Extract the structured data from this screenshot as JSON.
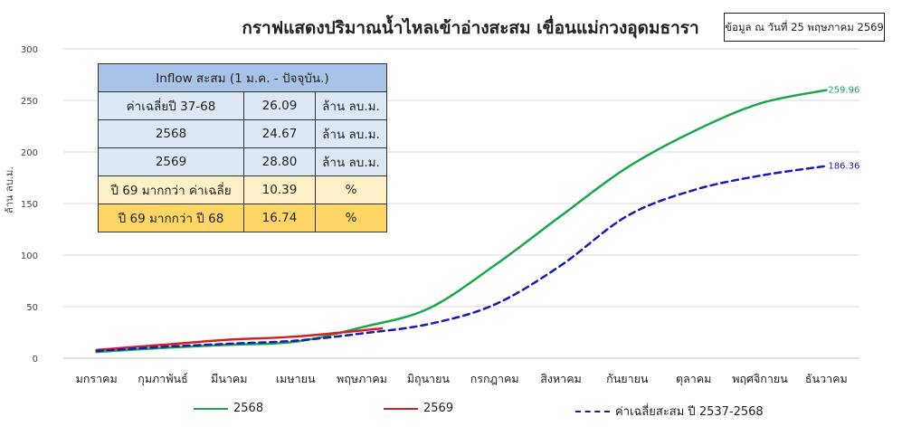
{
  "colors": {
    "s2568": "#1aa64a",
    "s2569": "#d62020",
    "avg": "#1a1ab8",
    "grid": "#d9d9d9"
  },
  "title": "กราฟแสดงปริมาณน้ำไหลเข้าอ่างสะสม เขื่อนแม่กวงอุดมธารา",
  "note": "ข้อมูล ณ วันที่ 25 พฤษภาคม 2569",
  "table": {
    "header": "Inflow สะสม (1 ม.ค. - ปัจจุบัน.)",
    "rows": [
      {
        "label": "ค่าเฉลี่ยปี 37-68",
        "value": "26.09",
        "unit": "ล้าน ลบ.ม."
      },
      {
        "label": "2568",
        "value": "24.67",
        "unit": "ล้าน ลบ.ม."
      },
      {
        "label": "2569",
        "value": "28.80",
        "unit": "ล้าน ลบ.ม."
      },
      {
        "label": "ปี 69 มากกว่า ค่าเฉลี่ย",
        "value": "10.39",
        "unit": "%"
      },
      {
        "label": "ปี 69 มากกว่า ปี 68",
        "value": "16.74",
        "unit": "%"
      }
    ]
  },
  "chart_data": {
    "type": "line",
    "title": "กราฟแสดงปริมาณน้ำไหลเข้าอ่างสะสม เขื่อนแม่กวงอุดมธารา",
    "ylabel": "ล้าน ลบ.ม.",
    "xlabel": "",
    "ylim": [
      0,
      300
    ],
    "yticks": [
      0,
      50,
      100,
      150,
      200,
      250,
      300
    ],
    "grid": true,
    "legend_position": "bottom",
    "categories": [
      "มกราคม",
      "กุมภาพันธ์",
      "มีนาคม",
      "เมษายน",
      "พฤษภาคม",
      "มิถุนายน",
      "กรกฎาคม",
      "สิงหาคม",
      "กันยายน",
      "ตุลาคม",
      "พฤศจิกายน",
      "ธันวาคม"
    ],
    "series": [
      {
        "name": "2568",
        "color": "#1aa64a",
        "dash": "solid",
        "x": [
          0,
          1,
          2,
          3,
          4,
          5,
          6,
          7,
          8,
          9,
          10,
          11
        ],
        "values": [
          6,
          10,
          13,
          16,
          30,
          48,
          90,
          138,
          185,
          220,
          247,
          259.96
        ],
        "end_label": "259.96"
      },
      {
        "name": "2569",
        "color": "#d62020",
        "dash": "solid",
        "x": [
          0,
          1,
          2,
          3,
          4.3
        ],
        "values": [
          8,
          13,
          18,
          21,
          28.8
        ]
      },
      {
        "name": "ค่าเฉลี่ยสะสม ปี 2537-2568",
        "color": "#1a1ab8",
        "dash": "dashed",
        "x": [
          0,
          1,
          2,
          3,
          4,
          5,
          6,
          7,
          8,
          9,
          10,
          11
        ],
        "values": [
          7,
          11,
          14,
          17,
          24,
          33,
          52,
          90,
          138,
          163,
          177,
          186.36
        ],
        "end_label": "186.36"
      }
    ]
  }
}
